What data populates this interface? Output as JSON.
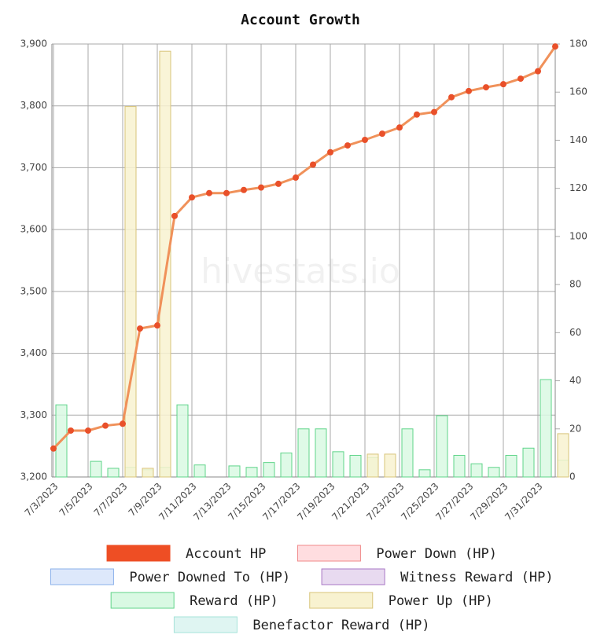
{
  "chart_data": {
    "type": "combo",
    "title": "Account Growth",
    "watermark": "hivestats.io",
    "categories": [
      "7/3/2023",
      null,
      "7/5/2023",
      null,
      "7/7/2023",
      null,
      "7/9/2023",
      null,
      "7/11/2023",
      null,
      "7/13/2023",
      null,
      "7/15/2023",
      null,
      "7/17/2023",
      null,
      "7/19/2023",
      null,
      "7/21/2023",
      null,
      "7/23/2023",
      null,
      "7/25/2023",
      null,
      "7/27/2023",
      null,
      "7/29/2023",
      null,
      "7/31/2023",
      null
    ],
    "ylim": [
      3200,
      3900
    ],
    "yticks": [
      {
        "value": 3200,
        "label": "3,200"
      },
      {
        "value": 3300,
        "label": "3,300"
      },
      {
        "value": 3400,
        "label": "3,400"
      },
      {
        "value": 3500,
        "label": "3,500"
      },
      {
        "value": 3600,
        "label": "3,600"
      },
      {
        "value": 3700,
        "label": "3,700"
      },
      {
        "value": 3800,
        "label": "3,800"
      },
      {
        "value": 3900,
        "label": "3,900"
      }
    ],
    "y2lim": [
      0,
      180
    ],
    "y2ticks": [
      0,
      20,
      40,
      60,
      80,
      100,
      120,
      140,
      160,
      180
    ],
    "grid": true,
    "series": [
      {
        "name": "Account HP",
        "type": "line",
        "axis": "y",
        "color": "#f0915a",
        "point_color": "#e9502a",
        "legend_color": "#ee4e24",
        "values": [
          3246,
          3275,
          3275,
          3283,
          3286,
          3440,
          3445,
          3622,
          3652,
          3659,
          3659,
          3664,
          3668,
          3674,
          3684,
          3705,
          3725,
          3736,
          3745,
          3755,
          3765,
          3786,
          3790,
          3814,
          3824,
          3830,
          3835,
          3844,
          3856,
          3896
        ]
      },
      {
        "name": "Power Down (HP)",
        "type": "bar",
        "axis": "y2",
        "color": "#ffdde0",
        "border": "#f08a8a"
      },
      {
        "name": "Power Downed To (HP)",
        "type": "bar",
        "axis": "y2",
        "color": "#dde8fb",
        "border": "#8ab0ea"
      },
      {
        "name": "Witness Reward (HP)",
        "type": "bar",
        "axis": "y2",
        "color": "#e8daf0",
        "border": "#a775c4"
      },
      {
        "name": "Reward (HP)",
        "type": "bar",
        "axis": "y2",
        "color": "#d9f9e3",
        "border": "#5fd48a",
        "values": [
          30,
          null,
          6.5,
          3.6,
          4,
          3,
          4,
          30,
          5,
          null,
          4.6,
          4,
          6,
          10,
          20,
          20,
          10.5,
          9,
          8,
          null,
          20,
          3,
          25.5,
          9,
          5.5,
          4,
          9,
          12,
          40.5,
          7
        ]
      },
      {
        "name": "Power Up (HP)",
        "type": "bar",
        "axis": "y2",
        "color": "#f8f2d0",
        "border": "#d8c47a",
        "values": [
          null,
          null,
          null,
          null,
          154,
          3.6,
          177,
          null,
          null,
          null,
          null,
          null,
          null,
          null,
          null,
          null,
          null,
          null,
          9.5,
          9.5,
          null,
          null,
          null,
          null,
          null,
          null,
          null,
          null,
          null,
          18
        ]
      },
      {
        "name": "Benefactor Reward (HP)",
        "type": "bar",
        "axis": "y2",
        "color": "#dff5f2",
        "border": "#a6e3d9"
      }
    ]
  }
}
